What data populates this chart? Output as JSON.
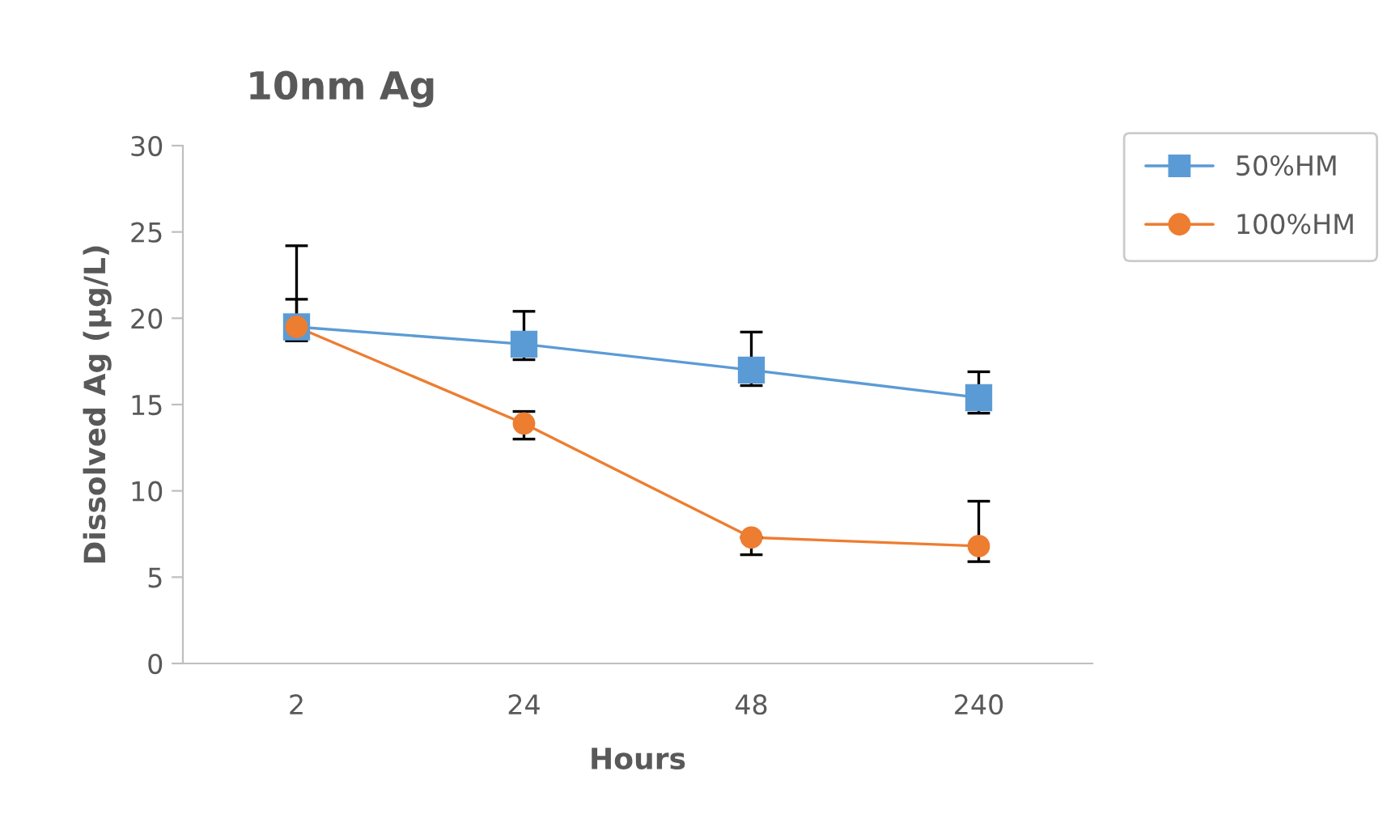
{
  "chart_data": {
    "type": "line",
    "title": "10nm Ag",
    "xlabel": "Hours",
    "ylabel": "Dissolved Ag (µg/L)",
    "categories": [
      "2",
      "24",
      "48",
      "240"
    ],
    "series": [
      {
        "name": "50%HM",
        "color": "#5b9bd5",
        "marker": "square",
        "values": [
          19.5,
          18.5,
          17.0,
          15.4
        ],
        "errors": [
          [
            18.7,
            21.1
          ],
          [
            17.6,
            20.4
          ],
          [
            16.1,
            19.2
          ],
          [
            14.5,
            16.9
          ]
        ]
      },
      {
        "name": "100%HM",
        "color": "#ed7d31",
        "marker": "circle",
        "values": [
          19.5,
          13.9,
          7.3,
          6.8
        ],
        "errors": [
          [
            18.7,
            24.2
          ],
          [
            13.0,
            14.6
          ],
          [
            6.3,
            7.3
          ],
          [
            5.9,
            9.4
          ]
        ]
      }
    ],
    "ylim": [
      0,
      30
    ],
    "yticks": [
      0,
      5,
      10,
      15,
      20,
      25,
      30
    ],
    "grid": false,
    "legend": "top right",
    "line_style": "solid"
  }
}
